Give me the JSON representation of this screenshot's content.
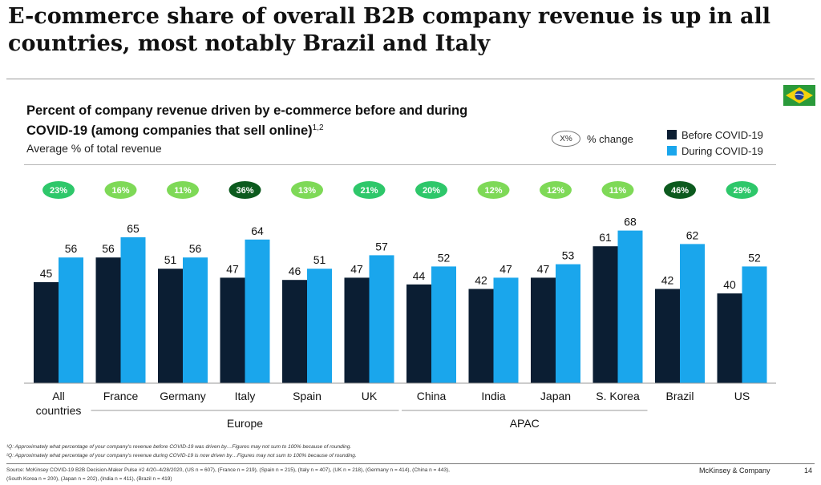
{
  "headline": "E-commerce share of overall B2B company revenue is up in all countries, most notably Brazil and Italy",
  "chart_title": "Percent of company revenue driven by e-commerce before and during COVID-19 (among companies that sell online)",
  "chart_title_sup": "1,2",
  "subtitle": "Average % of total revenue",
  "pct_legend": {
    "symbol": "X%",
    "label": "% change"
  },
  "colors": {
    "before": "#0b1e33",
    "during": "#1aa6ec",
    "pill_light": "#7ed957",
    "pill_mid": "#2ec76a",
    "pill_dark": "#0c5a1e"
  },
  "chart_data": {
    "type": "bar",
    "categories": [
      "All countries",
      "France",
      "Germany",
      "Italy",
      "Spain",
      "UK",
      "China",
      "India",
      "Japan",
      "S. Korea",
      "Brazil",
      "US"
    ],
    "series": [
      {
        "name": "Before COVID-19",
        "values": [
          45,
          56,
          51,
          47,
          46,
          47,
          44,
          42,
          47,
          61,
          42,
          40
        ]
      },
      {
        "name": "During COVID-19",
        "values": [
          56,
          65,
          56,
          64,
          51,
          57,
          52,
          47,
          53,
          68,
          62,
          52
        ]
      }
    ],
    "pct_change": [
      "23%",
      "16%",
      "11%",
      "36%",
      "13%",
      "21%",
      "20%",
      "12%",
      "12%",
      "11%",
      "46%",
      "29%"
    ],
    "pct_shade": [
      "mid",
      "light",
      "light",
      "dark",
      "light",
      "mid",
      "mid",
      "light",
      "light",
      "light",
      "dark",
      "mid"
    ],
    "groups": [
      {
        "label": "Europe",
        "from": 1,
        "to": 5
      },
      {
        "label": "APAC",
        "from": 6,
        "to": 9
      }
    ],
    "ylim": [
      0,
      75
    ],
    "xlabel": "",
    "ylabel": ""
  },
  "footnotes": [
    "¹Q: Approximately what percentage of your company's revenue before COVID-19 was driven by…Figures may not sum to 100% because of rounding.",
    "²Q: Approximately what percentage of your company's revenue during COVID-19 is now driven by…Figures may not sum to 100% because of rounding."
  ],
  "source_line1": "Source: McKinsey COVID-19 B2B Decision-Maker Pulse #2 4/20–4/28/2020, (US n = 607), (France n = 219), (Spain n = 215), (Italy n = 407), (UK n = 218), (Germany n = 414), (China n = 443),",
  "source_line2": "(South Korea n = 200), (Japan n = 202), (India n = 411), (Brazil n = 419)",
  "brand": "McKinsey & Company",
  "page_number": "14"
}
